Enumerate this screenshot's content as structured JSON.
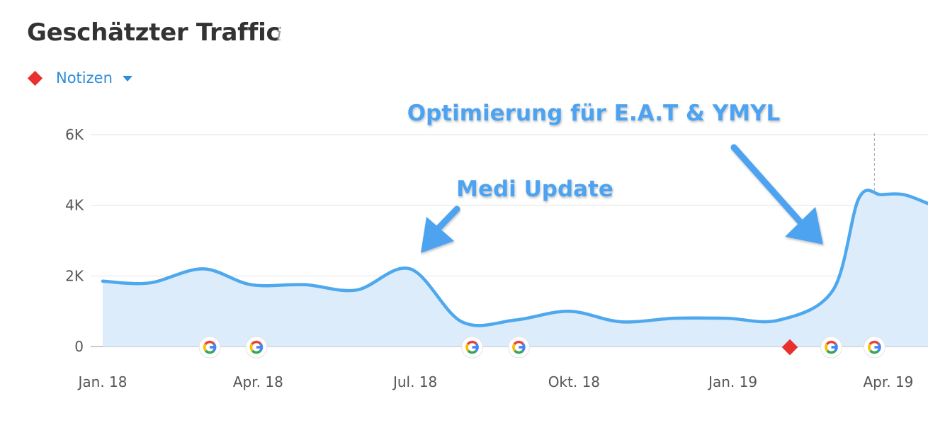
{
  "header": {
    "title": "Geschätzter Traffic",
    "info_icon": "info-icon"
  },
  "notes": {
    "label": "Notizen",
    "marker_color": "#e8312f",
    "dropdown_icon": "chevron-down-icon"
  },
  "annotations": [
    {
      "text": "Optimierung für E.A.T & YMYL"
    },
    {
      "text": "Medi Update"
    }
  ],
  "colors": {
    "line": "#4da8ee",
    "area": "#dcecfb",
    "grid": "#e2e2e2",
    "accent": "#2d8ddb"
  },
  "chart_data": {
    "type": "area",
    "title": "Geschätzter Traffic",
    "xlabel": "",
    "ylabel": "",
    "ylim": [
      0,
      6000
    ],
    "yticks": [
      0,
      2000,
      4000,
      6000
    ],
    "ytick_labels": [
      "0",
      "2K",
      "4K",
      "6K"
    ],
    "xlim": [
      "2018-01-01",
      "2019-04-24"
    ],
    "xticks": [
      "2018-01-01",
      "2018-04-01",
      "2018-07-01",
      "2018-10-01",
      "2019-01-01",
      "2019-04-01"
    ],
    "xtick_labels": [
      "Jan. 18",
      "Apr. 18",
      "Jul. 18",
      "Okt. 18",
      "Jan. 19",
      "Apr. 19"
    ],
    "grid": true,
    "series": [
      {
        "x": [
          "2018-01-01",
          "2018-01-28",
          "2018-02-28",
          "2018-03-28",
          "2018-04-28",
          "2018-05-28",
          "2018-06-28",
          "2018-07-28",
          "2018-08-28",
          "2018-09-28",
          "2018-10-28",
          "2018-11-28",
          "2018-12-28",
          "2019-01-28",
          "2019-02-28",
          "2019-03-15",
          "2019-03-28",
          "2019-04-10",
          "2019-04-24"
        ],
        "values": [
          1850,
          1800,
          2200,
          1750,
          1750,
          1600,
          2200,
          700,
          750,
          1000,
          700,
          800,
          800,
          750,
          1600,
          4200,
          4300,
          4300,
          4050
        ]
      }
    ],
    "event_markers": [
      {
        "type": "google-update-icon",
        "x": "2018-03-04"
      },
      {
        "type": "google-update-icon",
        "x": "2018-03-31"
      },
      {
        "type": "google-update-icon",
        "x": "2018-08-03"
      },
      {
        "type": "google-update-icon",
        "x": "2018-08-30"
      },
      {
        "type": "note-marker",
        "x": "2019-02-03"
      },
      {
        "type": "google-update-icon",
        "x": "2019-02-27"
      },
      {
        "type": "google-update-icon",
        "x": "2019-03-24"
      }
    ],
    "vertical_cursor": "2019-03-24"
  }
}
